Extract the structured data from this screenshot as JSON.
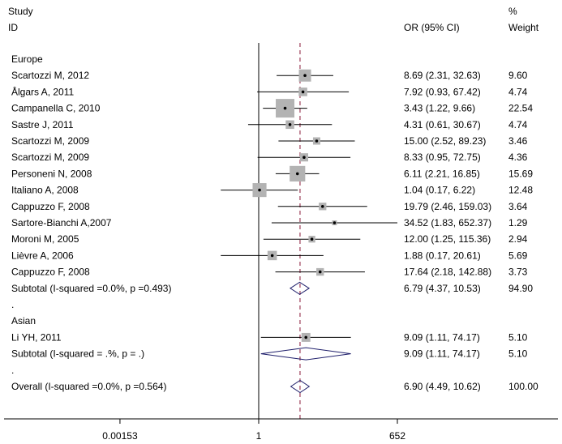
{
  "chart_data": {
    "type": "forest",
    "title": "",
    "header": {
      "study_line1": "Study",
      "study_line2": "ID",
      "effect_header": "OR (95% CI)",
      "weight_line1": "%",
      "weight_line2": "Weight"
    },
    "x_scale": "log",
    "x_ticks": [
      "0.00153",
      "1",
      "652"
    ],
    "x_tick_values": [
      0.00153,
      1,
      652
    ],
    "reference_line": 1,
    "overall_line": 6.9,
    "rows": [
      {
        "kind": "group",
        "label": "Europe"
      },
      {
        "kind": "study",
        "label": "Scartozzi M, 2012",
        "or": 8.69,
        "lo": 2.31,
        "hi": 32.63,
        "ci_text": "8.69 (2.31, 32.63)",
        "weight": 9.6,
        "weight_text": "9.60"
      },
      {
        "kind": "study",
        "label": "Ålgars A, 2011",
        "or": 7.92,
        "lo": 0.93,
        "hi": 67.42,
        "ci_text": "7.92 (0.93, 67.42)",
        "weight": 4.74,
        "weight_text": "4.74"
      },
      {
        "kind": "study",
        "label": "Campanella C, 2010",
        "or": 3.43,
        "lo": 1.22,
        "hi": 9.66,
        "ci_text": "3.43 (1.22, 9.66)",
        "weight": 22.54,
        "weight_text": "22.54"
      },
      {
        "kind": "study",
        "label": "Sastre J, 2011",
        "or": 4.31,
        "lo": 0.61,
        "hi": 30.67,
        "ci_text": "4.31 (0.61, 30.67)",
        "weight": 4.74,
        "weight_text": "4.74"
      },
      {
        "kind": "study",
        "label": "Scartozzi M, 2009",
        "or": 15.0,
        "lo": 2.52,
        "hi": 89.23,
        "ci_text": "15.00 (2.52, 89.23)",
        "weight": 3.46,
        "weight_text": "3.46"
      },
      {
        "kind": "study",
        "label": "Scartozzi M, 2009",
        "or": 8.33,
        "lo": 0.95,
        "hi": 72.75,
        "ci_text": "8.33 (0.95, 72.75)",
        "weight": 4.36,
        "weight_text": "4.36"
      },
      {
        "kind": "study",
        "label": "Personeni N, 2008",
        "or": 6.11,
        "lo": 2.21,
        "hi": 16.85,
        "ci_text": "6.11 (2.21, 16.85)",
        "weight": 15.69,
        "weight_text": "15.69"
      },
      {
        "kind": "study",
        "label": "Italiano A, 2008",
        "or": 1.04,
        "lo": 0.17,
        "hi": 6.22,
        "ci_text": "1.04 (0.17, 6.22)",
        "weight": 12.48,
        "weight_text": "12.48"
      },
      {
        "kind": "study",
        "label": "Cappuzzo F, 2008",
        "or": 19.79,
        "lo": 2.46,
        "hi": 159.03,
        "ci_text": "19.79 (2.46, 159.03)",
        "weight": 3.64,
        "weight_text": "3.64"
      },
      {
        "kind": "study",
        "label": "Sartore-Bianchi A,2007",
        "or": 34.52,
        "lo": 1.83,
        "hi": 652.37,
        "ci_text": "34.52 (1.83, 652.37)",
        "weight": 1.29,
        "weight_text": "1.29"
      },
      {
        "kind": "study",
        "label": "Moroni M, 2005",
        "or": 12.0,
        "lo": 1.25,
        "hi": 115.36,
        "ci_text": "12.00 (1.25, 115.36)",
        "weight": 2.94,
        "weight_text": "2.94"
      },
      {
        "kind": "study",
        "label": "Lièvre A, 2006",
        "or": 1.88,
        "lo": 0.17,
        "hi": 20.61,
        "ci_text": "1.88 (0.17, 20.61)",
        "weight": 5.69,
        "weight_text": "5.69"
      },
      {
        "kind": "study",
        "label": "Cappuzzo F, 2008",
        "or": 17.64,
        "lo": 2.18,
        "hi": 142.88,
        "ci_text": "17.64 (2.18, 142.88)",
        "weight": 3.73,
        "weight_text": "3.73"
      },
      {
        "kind": "subtotal",
        "label": "Subtotal  (I-squared =0.0%, p =0.493)",
        "or": 6.79,
        "lo": 4.37,
        "hi": 10.53,
        "ci_text": "6.79 (4.37, 10.53)",
        "weight": 94.9,
        "weight_text": "94.90"
      },
      {
        "kind": "spacer",
        "label": "."
      },
      {
        "kind": "group",
        "label": "Asian"
      },
      {
        "kind": "study",
        "label": "Li YH, 2011",
        "or": 9.09,
        "lo": 1.11,
        "hi": 74.17,
        "ci_text": "9.09 (1.11, 74.17)",
        "weight": 5.1,
        "weight_text": "5.10"
      },
      {
        "kind": "subtotal",
        "label": "Subtotal  (I-squared = .%, p = .)",
        "or": 9.09,
        "lo": 1.11,
        "hi": 74.17,
        "ci_text": "9.09 (1.11, 74.17)",
        "weight": 5.1,
        "weight_text": "5.10"
      },
      {
        "kind": "spacer",
        "label": "."
      },
      {
        "kind": "overall",
        "label": "Overall  (I-squared =0.0%, p =0.564)",
        "or": 6.9,
        "lo": 4.49,
        "hi": 10.62,
        "ci_text": "6.90 (4.49, 10.62)",
        "weight": 100.0,
        "weight_text": "100.00"
      }
    ],
    "colors": {
      "box": "#b3b3b3",
      "line": "#000000",
      "diamond": "#1f1f6b",
      "overall_line": "#8b1a3a"
    }
  }
}
